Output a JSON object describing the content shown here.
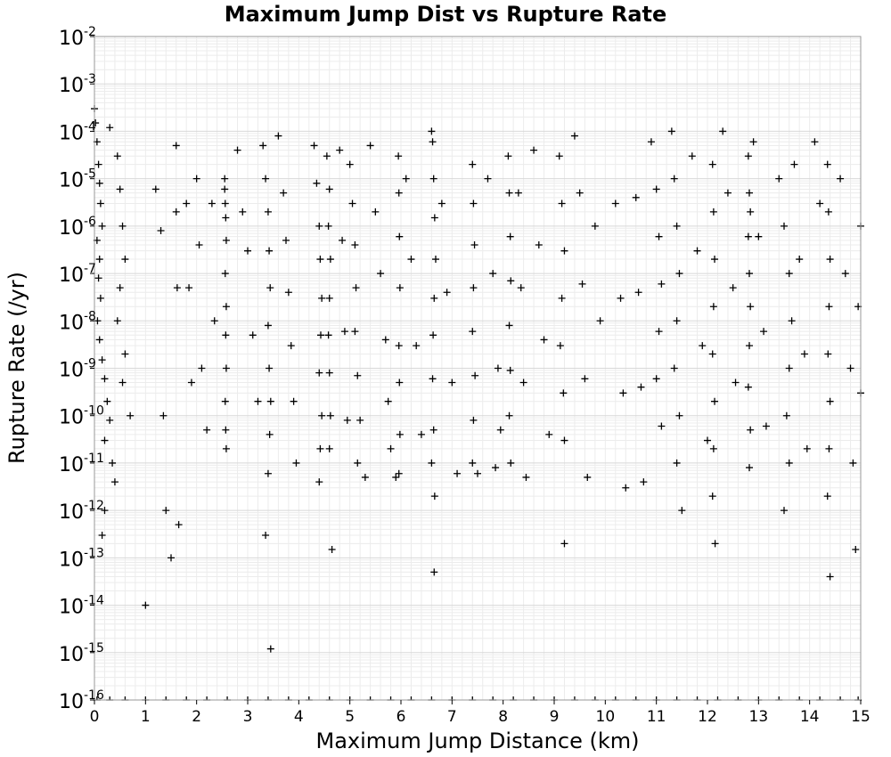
{
  "chart_data": {
    "type": "scatter",
    "title": "Maximum Jump Dist vs Rupture Rate",
    "xlabel": "Maximum Jump Distance (km)",
    "ylabel": "Rupture Rate (/yr)",
    "xlim": [
      0,
      15
    ],
    "ylim": [
      1e-16,
      0.01
    ],
    "yscale": "log",
    "grid": true,
    "marker": "+",
    "marker_color": "#000000",
    "x_tick_labels": [
      "0",
      "1",
      "2",
      "3",
      "4",
      "5",
      "6",
      "7",
      "8",
      "9",
      "10",
      "11",
      "12",
      "13",
      "14",
      "15"
    ],
    "y_tick_labels": [
      {
        "base": "10",
        "exp": "-2"
      },
      {
        "base": "10",
        "exp": "-3"
      },
      {
        "base": "10",
        "exp": "-4"
      },
      {
        "base": "10",
        "exp": "-5"
      },
      {
        "base": "10",
        "exp": "-6"
      },
      {
        "base": "10",
        "exp": "-7"
      },
      {
        "base": "10",
        "exp": "-8"
      },
      {
        "base": "10",
        "exp": "-9"
      },
      {
        "base": "10",
        "exp": "-10"
      },
      {
        "base": "10",
        "exp": "-11"
      },
      {
        "base": "10",
        "exp": "-12"
      },
      {
        "base": "10",
        "exp": "-13"
      },
      {
        "base": "10",
        "exp": "-14"
      },
      {
        "base": "10",
        "exp": "-15"
      },
      {
        "base": "10",
        "exp": "-16"
      }
    ],
    "series": [
      {
        "points": [
          [
            0.0,
            0.0003
          ],
          [
            0.02,
            0.00015
          ],
          [
            0.05,
            6e-05
          ],
          [
            0.08,
            2e-05
          ],
          [
            0.1,
            8e-06
          ],
          [
            0.12,
            3e-06
          ],
          [
            0.15,
            1e-06
          ],
          [
            0.05,
            5e-07
          ],
          [
            0.1,
            2e-07
          ],
          [
            0.08,
            8e-08
          ],
          [
            0.12,
            3e-08
          ],
          [
            0.06,
            1e-08
          ],
          [
            0.1,
            4e-09
          ],
          [
            0.15,
            1.5e-09
          ],
          [
            0.2,
            6e-10
          ],
          [
            0.25,
            2e-10
          ],
          [
            0.3,
            8e-11
          ],
          [
            0.2,
            3e-11
          ],
          [
            0.35,
            1e-11
          ],
          [
            0.4,
            4e-12
          ],
          [
            0.2,
            1e-12
          ],
          [
            0.15,
            3e-13
          ],
          [
            0.3,
            0.00012
          ],
          [
            0.45,
            3e-05
          ],
          [
            0.5,
            6e-06
          ],
          [
            0.55,
            1e-06
          ],
          [
            0.6,
            2e-07
          ],
          [
            0.5,
            5e-08
          ],
          [
            0.45,
            1e-08
          ],
          [
            0.6,
            2e-09
          ],
          [
            0.55,
            5e-10
          ],
          [
            0.7,
            1e-10
          ],
          [
            1.0,
            1e-14
          ],
          [
            1.2,
            6e-06
          ],
          [
            1.3,
            8e-07
          ],
          [
            1.35,
            1e-10
          ],
          [
            1.4,
            1e-12
          ],
          [
            1.5,
            1e-13
          ],
          [
            1.6,
            5e-05
          ],
          [
            1.6,
            2e-06
          ],
          [
            1.62,
            5e-08
          ],
          [
            1.65,
            5e-13
          ],
          [
            1.8,
            3e-06
          ],
          [
            1.85,
            5e-08
          ],
          [
            1.9,
            5e-10
          ],
          [
            2.0,
            1e-05
          ],
          [
            2.05,
            4e-07
          ],
          [
            2.1,
            1e-09
          ],
          [
            2.2,
            5e-11
          ],
          [
            2.3,
            3e-06
          ],
          [
            2.35,
            1e-08
          ],
          [
            2.55,
            1e-05
          ],
          [
            2.55,
            6e-06
          ],
          [
            2.56,
            3e-06
          ],
          [
            2.57,
            1.5e-06
          ],
          [
            2.58,
            5e-07
          ],
          [
            2.56,
            1e-07
          ],
          [
            2.58,
            2e-08
          ],
          [
            2.57,
            5e-09
          ],
          [
            2.58,
            1e-09
          ],
          [
            2.56,
            2e-10
          ],
          [
            2.57,
            5e-11
          ],
          [
            2.58,
            2e-11
          ],
          [
            2.8,
            4e-05
          ],
          [
            2.9,
            2e-06
          ],
          [
            3.0,
            3e-07
          ],
          [
            3.1,
            5e-09
          ],
          [
            3.2,
            2e-10
          ],
          [
            3.3,
            5e-05
          ],
          [
            3.35,
            1e-05
          ],
          [
            3.4,
            2e-06
          ],
          [
            3.42,
            3e-07
          ],
          [
            3.44,
            5e-08
          ],
          [
            3.4,
            8e-09
          ],
          [
            3.42,
            1e-09
          ],
          [
            3.45,
            2e-10
          ],
          [
            3.43,
            4e-11
          ],
          [
            3.4,
            6e-12
          ],
          [
            3.35,
            3e-13
          ],
          [
            3.45,
            1.2e-15
          ],
          [
            3.6,
            8e-05
          ],
          [
            3.7,
            5e-06
          ],
          [
            3.75,
            5e-07
          ],
          [
            3.8,
            4e-08
          ],
          [
            3.85,
            3e-09
          ],
          [
            3.9,
            2e-10
          ],
          [
            3.95,
            1e-11
          ],
          [
            4.3,
            5e-05
          ],
          [
            4.35,
            8e-06
          ],
          [
            4.4,
            1e-06
          ],
          [
            4.42,
            2e-07
          ],
          [
            4.45,
            3e-08
          ],
          [
            4.43,
            5e-09
          ],
          [
            4.4,
            8e-10
          ],
          [
            4.45,
            1e-10
          ],
          [
            4.42,
            2e-11
          ],
          [
            4.4,
            4e-12
          ],
          [
            4.55,
            3e-05
          ],
          [
            4.6,
            6e-06
          ],
          [
            4.58,
            1e-06
          ],
          [
            4.62,
            2e-07
          ],
          [
            4.6,
            3e-08
          ],
          [
            4.58,
            5e-09
          ],
          [
            4.6,
            8e-10
          ],
          [
            4.62,
            1e-10
          ],
          [
            4.6,
            2e-11
          ],
          [
            4.65,
            1.5e-13
          ],
          [
            4.8,
            4e-05
          ],
          [
            4.85,
            5e-07
          ],
          [
            4.9,
            6e-09
          ],
          [
            4.95,
            8e-11
          ],
          [
            5.0,
            2e-05
          ],
          [
            5.05,
            3e-06
          ],
          [
            5.1,
            4e-07
          ],
          [
            5.12,
            5e-08
          ],
          [
            5.1,
            6e-09
          ],
          [
            5.15,
            7e-10
          ],
          [
            5.2,
            8e-11
          ],
          [
            5.15,
            1e-11
          ],
          [
            5.3,
            5e-12
          ],
          [
            5.4,
            5e-05
          ],
          [
            5.5,
            2e-06
          ],
          [
            5.6,
            1e-07
          ],
          [
            5.7,
            4e-09
          ],
          [
            5.75,
            2e-10
          ],
          [
            5.8,
            2e-11
          ],
          [
            5.9,
            5e-12
          ],
          [
            5.95,
            3e-05
          ],
          [
            5.96,
            5e-06
          ],
          [
            5.97,
            6e-07
          ],
          [
            5.98,
            5e-08
          ],
          [
            5.96,
            3e-09
          ],
          [
            5.97,
            5e-10
          ],
          [
            5.98,
            4e-11
          ],
          [
            5.96,
            6e-12
          ],
          [
            6.1,
            1e-05
          ],
          [
            6.2,
            2e-07
          ],
          [
            6.3,
            3e-09
          ],
          [
            6.4,
            4e-11
          ],
          [
            6.6,
            0.0001
          ],
          [
            6.62,
            6e-05
          ],
          [
            6.64,
            1e-05
          ],
          [
            6.66,
            1.5e-06
          ],
          [
            6.68,
            2e-07
          ],
          [
            6.65,
            3e-08
          ],
          [
            6.63,
            5e-09
          ],
          [
            6.62,
            6e-10
          ],
          [
            6.64,
            5e-11
          ],
          [
            6.6,
            1e-11
          ],
          [
            6.66,
            2e-12
          ],
          [
            6.65,
            5e-14
          ],
          [
            6.8,
            3e-06
          ],
          [
            6.9,
            4e-08
          ],
          [
            7.0,
            5e-10
          ],
          [
            7.1,
            6e-12
          ],
          [
            7.4,
            2e-05
          ],
          [
            7.42,
            3e-06
          ],
          [
            7.44,
            4e-07
          ],
          [
            7.42,
            5e-08
          ],
          [
            7.4,
            6e-09
          ],
          [
            7.45,
            7e-10
          ],
          [
            7.42,
            8e-11
          ],
          [
            7.4,
            1e-11
          ],
          [
            7.5,
            6e-12
          ],
          [
            7.7,
            1e-05
          ],
          [
            7.8,
            1e-07
          ],
          [
            7.9,
            1e-09
          ],
          [
            7.95,
            5e-11
          ],
          [
            7.85,
            8e-12
          ],
          [
            8.1,
            3e-05
          ],
          [
            8.12,
            5e-06
          ],
          [
            8.14,
            6e-07
          ],
          [
            8.15,
            7e-08
          ],
          [
            8.12,
            8e-09
          ],
          [
            8.14,
            9e-10
          ],
          [
            8.12,
            1e-10
          ],
          [
            8.15,
            1e-11
          ],
          [
            8.3,
            5e-06
          ],
          [
            8.35,
            5e-08
          ],
          [
            8.4,
            5e-10
          ],
          [
            8.45,
            5e-12
          ],
          [
            8.6,
            4e-05
          ],
          [
            8.7,
            4e-07
          ],
          [
            8.8,
            4e-09
          ],
          [
            8.9,
            4e-11
          ],
          [
            9.1,
            3e-05
          ],
          [
            9.15,
            3e-06
          ],
          [
            9.2,
            3e-07
          ],
          [
            9.15,
            3e-08
          ],
          [
            9.12,
            3e-09
          ],
          [
            9.18,
            3e-10
          ],
          [
            9.2,
            3e-11
          ],
          [
            9.2,
            2e-13
          ],
          [
            9.4,
            8e-05
          ],
          [
            9.5,
            5e-06
          ],
          [
            9.55,
            6e-08
          ],
          [
            9.6,
            6e-10
          ],
          [
            9.65,
            5e-12
          ],
          [
            9.8,
            1e-06
          ],
          [
            9.9,
            1e-08
          ],
          [
            10.2,
            3e-06
          ],
          [
            10.3,
            3e-08
          ],
          [
            10.35,
            3e-10
          ],
          [
            10.4,
            3e-12
          ],
          [
            10.6,
            4e-06
          ],
          [
            10.65,
            4e-08
          ],
          [
            10.7,
            4e-10
          ],
          [
            10.75,
            4e-12
          ],
          [
            10.9,
            6e-05
          ],
          [
            11.0,
            6e-06
          ],
          [
            11.05,
            6e-07
          ],
          [
            11.1,
            6e-08
          ],
          [
            11.05,
            6e-09
          ],
          [
            11.0,
            6e-10
          ],
          [
            11.1,
            6e-11
          ],
          [
            11.3,
            0.0001
          ],
          [
            11.35,
            1e-05
          ],
          [
            11.4,
            1e-06
          ],
          [
            11.45,
            1e-07
          ],
          [
            11.4,
            1e-08
          ],
          [
            11.35,
            1e-09
          ],
          [
            11.45,
            1e-10
          ],
          [
            11.4,
            1e-11
          ],
          [
            11.5,
            1e-12
          ],
          [
            11.7,
            3e-05
          ],
          [
            11.8,
            3e-07
          ],
          [
            11.9,
            3e-09
          ],
          [
            12.0,
            3e-11
          ],
          [
            12.1,
            2e-05
          ],
          [
            12.12,
            2e-06
          ],
          [
            12.14,
            2e-07
          ],
          [
            12.12,
            2e-08
          ],
          [
            12.1,
            2e-09
          ],
          [
            12.14,
            2e-10
          ],
          [
            12.12,
            2e-11
          ],
          [
            12.1,
            2e-12
          ],
          [
            12.15,
            2e-13
          ],
          [
            12.3,
            0.0001
          ],
          [
            12.4,
            5e-06
          ],
          [
            12.5,
            5e-08
          ],
          [
            12.55,
            5e-10
          ],
          [
            12.8,
            3e-05
          ],
          [
            12.82,
            5e-06
          ],
          [
            12.84,
            2e-06
          ],
          [
            12.8,
            6e-07
          ],
          [
            12.82,
            1e-07
          ],
          [
            12.84,
            2e-08
          ],
          [
            12.82,
            3e-09
          ],
          [
            12.8,
            4e-10
          ],
          [
            12.84,
            5e-11
          ],
          [
            12.82,
            8e-12
          ],
          [
            12.9,
            6e-05
          ],
          [
            13.0,
            6e-07
          ],
          [
            13.1,
            6e-09
          ],
          [
            13.15,
            6e-11
          ],
          [
            13.4,
            1e-05
          ],
          [
            13.5,
            1e-06
          ],
          [
            13.6,
            1e-07
          ],
          [
            13.65,
            1e-08
          ],
          [
            13.6,
            1e-09
          ],
          [
            13.55,
            1e-10
          ],
          [
            13.6,
            1e-11
          ],
          [
            13.5,
            1e-12
          ],
          [
            13.7,
            2e-05
          ],
          [
            13.8,
            2e-07
          ],
          [
            13.9,
            2e-09
          ],
          [
            13.95,
            2e-11
          ],
          [
            14.1,
            6e-05
          ],
          [
            14.2,
            3e-06
          ],
          [
            14.35,
            2e-05
          ],
          [
            14.37,
            2e-06
          ],
          [
            14.4,
            2e-07
          ],
          [
            14.38,
            2e-08
          ],
          [
            14.36,
            2e-09
          ],
          [
            14.4,
            2e-10
          ],
          [
            14.38,
            2e-11
          ],
          [
            14.35,
            2e-12
          ],
          [
            14.4,
            4e-14
          ],
          [
            14.6,
            1e-05
          ],
          [
            14.7,
            1e-07
          ],
          [
            14.8,
            1e-09
          ],
          [
            14.85,
            1e-11
          ],
          [
            14.9,
            1.5e-13
          ],
          [
            15.0,
            1e-06
          ],
          [
            14.95,
            2e-08
          ],
          [
            15.0,
            3e-10
          ]
        ],
        "floor_points": [
          0.05,
          0.3,
          0.6,
          1.0,
          1.4,
          1.8,
          2.2,
          2.6,
          3.0,
          3.4,
          3.8,
          4.2,
          4.6,
          5.0,
          5.4,
          5.8,
          6.2,
          6.6,
          7.0,
          7.4,
          7.8,
          8.2,
          8.6,
          9.0,
          9.4,
          9.8,
          10.2,
          10.6,
          11.0,
          11.4,
          11.8,
          12.2,
          12.6,
          13.0,
          13.4,
          13.8,
          14.2,
          14.6,
          14.95
        ]
      }
    ]
  }
}
